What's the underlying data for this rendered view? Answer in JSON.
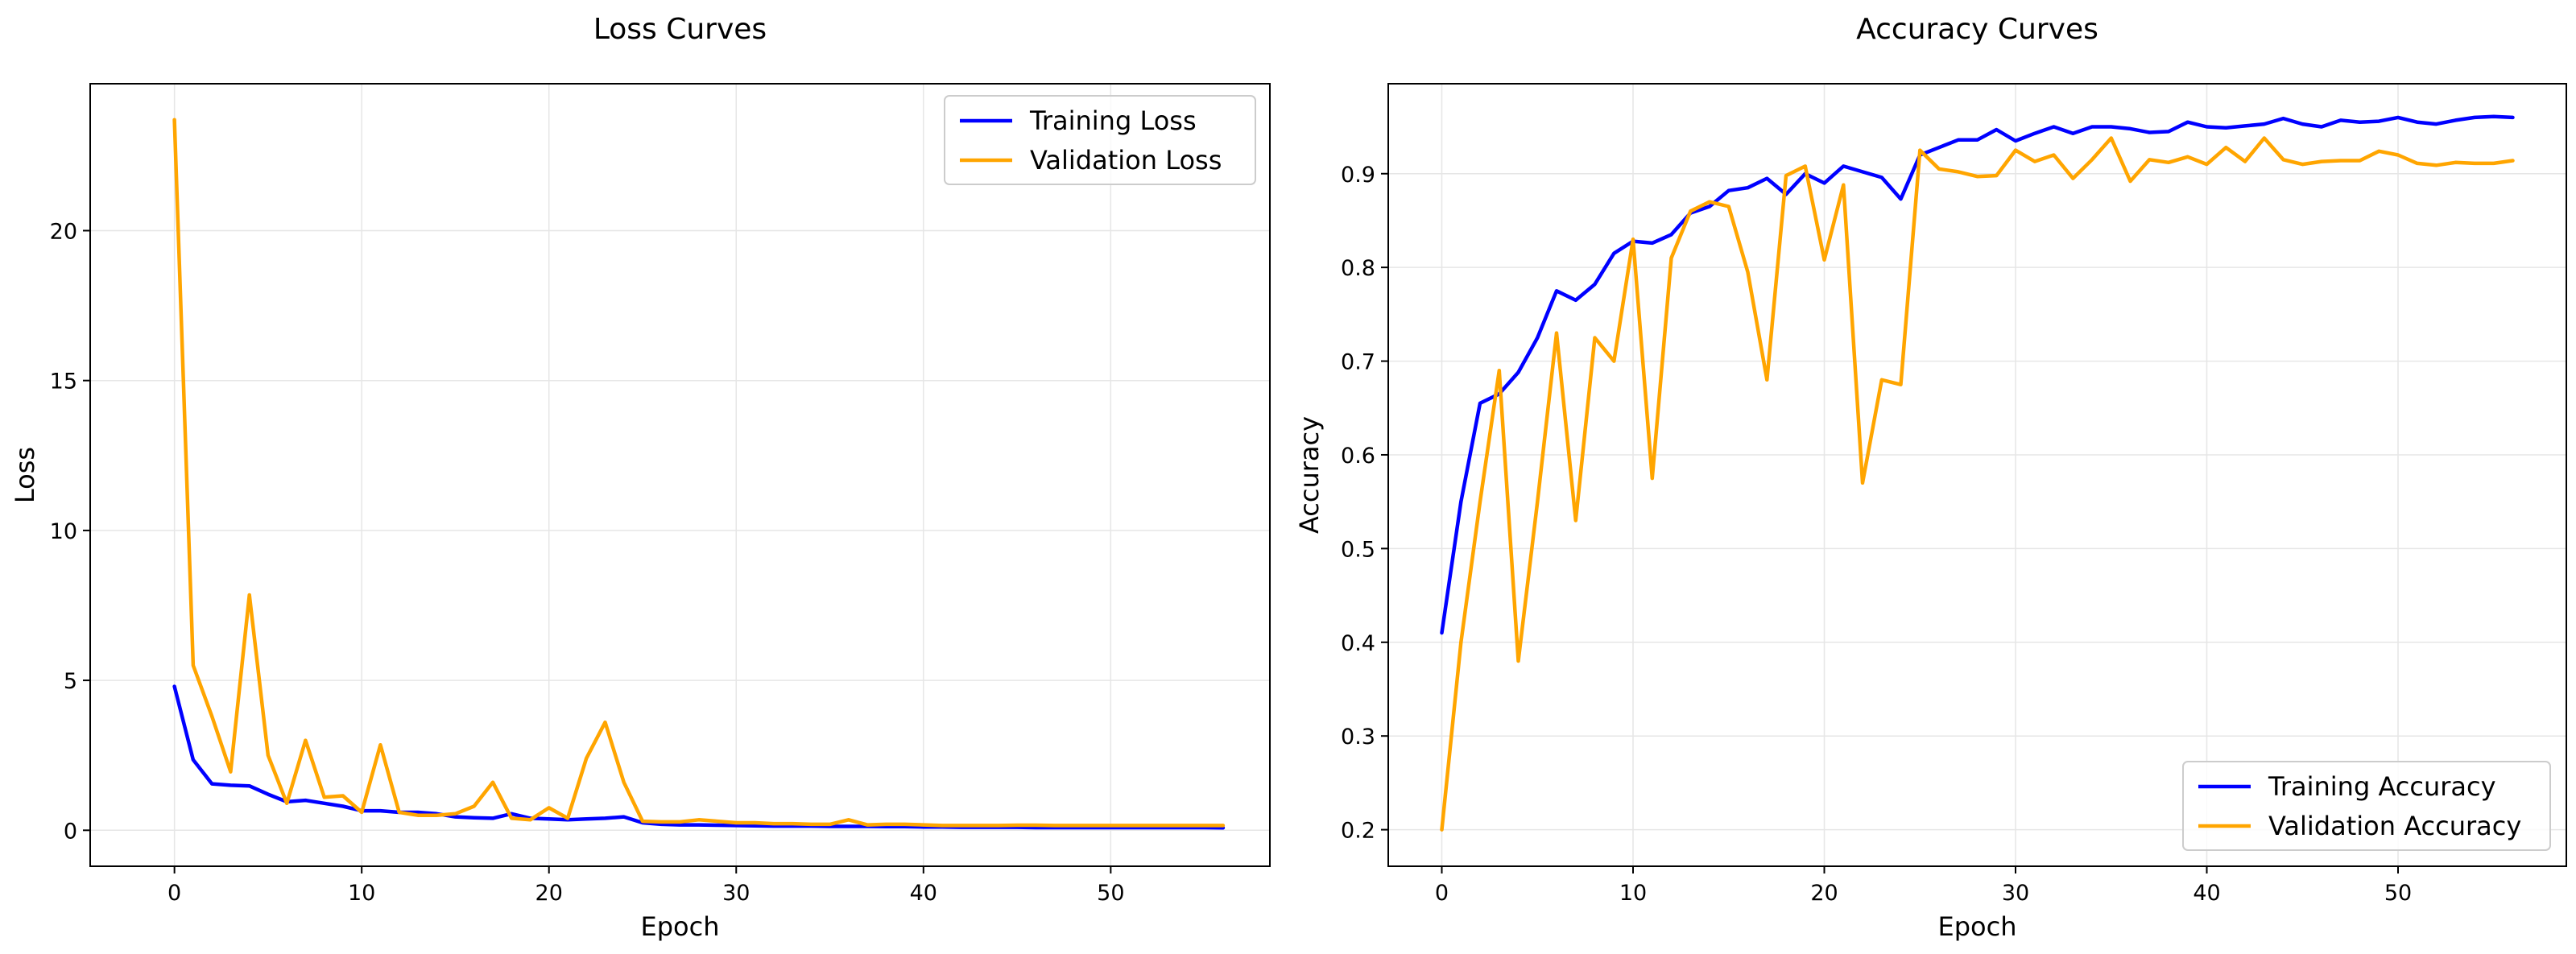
{
  "colors": {
    "training": "#0000ff",
    "validation": "#ffa500",
    "grid": "#e6e6e6",
    "axes": "#000000"
  },
  "chart_data": [
    {
      "type": "line",
      "title": "Loss Curves",
      "xlabel": "Epoch",
      "ylabel": "Loss",
      "xlim": [
        -4.5,
        58.5
      ],
      "ylim": [
        -1.2,
        24.9
      ],
      "xticks": [
        0,
        10,
        20,
        30,
        40,
        50
      ],
      "yticks": [
        0,
        5,
        10,
        15,
        20
      ],
      "grid": true,
      "legend_position": "top-right",
      "series": [
        {
          "name": "Training Loss",
          "color": "#0000ff",
          "key": "training",
          "values": [
            4.8,
            2.35,
            1.55,
            1.5,
            1.48,
            1.2,
            0.95,
            1.0,
            0.9,
            0.8,
            0.65,
            0.65,
            0.6,
            0.6,
            0.55,
            0.45,
            0.42,
            0.4,
            0.55,
            0.4,
            0.38,
            0.35,
            0.38,
            0.4,
            0.45,
            0.25,
            0.2,
            0.18,
            0.18,
            0.17,
            0.16,
            0.15,
            0.14,
            0.14,
            0.14,
            0.13,
            0.13,
            0.13,
            0.12,
            0.12,
            0.11,
            0.11,
            0.1,
            0.1,
            0.1,
            0.1,
            0.09,
            0.09,
            0.09,
            0.09,
            0.09,
            0.09,
            0.09,
            0.09,
            0.09,
            0.09,
            0.08
          ]
        },
        {
          "name": "Validation Loss",
          "color": "#ffa500",
          "key": "validation",
          "values": [
            23.7,
            5.5,
            3.8,
            1.95,
            7.85,
            2.5,
            0.9,
            3.0,
            1.1,
            1.15,
            0.6,
            2.85,
            0.6,
            0.5,
            0.5,
            0.55,
            0.8,
            1.6,
            0.4,
            0.35,
            0.75,
            0.4,
            2.4,
            3.6,
            1.6,
            0.3,
            0.28,
            0.28,
            0.35,
            0.3,
            0.25,
            0.25,
            0.22,
            0.22,
            0.2,
            0.2,
            0.35,
            0.18,
            0.2,
            0.2,
            0.18,
            0.16,
            0.16,
            0.16,
            0.16,
            0.17,
            0.17,
            0.16,
            0.16,
            0.16,
            0.16,
            0.16,
            0.16,
            0.16,
            0.16,
            0.16,
            0.16
          ]
        }
      ]
    },
    {
      "type": "line",
      "title": "Accuracy Curves",
      "xlabel": "Epoch",
      "ylabel": "Accuracy",
      "xlim": [
        -2.8,
        58.8
      ],
      "ylim": [
        0.161,
        0.996
      ],
      "xticks": [
        0,
        10,
        20,
        30,
        40,
        50
      ],
      "yticks": [
        0.2,
        0.3,
        0.4,
        0.5,
        0.6,
        0.7,
        0.8,
        0.9
      ],
      "grid": true,
      "legend_position": "bottom-right",
      "series": [
        {
          "name": "Training Accuracy",
          "color": "#0000ff",
          "key": "training",
          "values": [
            0.41,
            0.55,
            0.655,
            0.665,
            0.688,
            0.725,
            0.775,
            0.765,
            0.782,
            0.815,
            0.828,
            0.826,
            0.835,
            0.858,
            0.865,
            0.882,
            0.885,
            0.895,
            0.878,
            0.9,
            0.89,
            0.908,
            0.902,
            0.896,
            0.873,
            0.92,
            0.928,
            0.936,
            0.936,
            0.947,
            0.935,
            0.943,
            0.95,
            0.943,
            0.95,
            0.95,
            0.948,
            0.944,
            0.945,
            0.955,
            0.95,
            0.949,
            0.951,
            0.953,
            0.959,
            0.953,
            0.95,
            0.957,
            0.955,
            0.956,
            0.96,
            0.955,
            0.953,
            0.957,
            0.96,
            0.961,
            0.96
          ]
        },
        {
          "name": "Validation Accuracy",
          "color": "#ffa500",
          "key": "validation",
          "values": [
            0.2,
            0.4,
            0.55,
            0.69,
            0.38,
            0.55,
            0.73,
            0.53,
            0.725,
            0.7,
            0.83,
            0.575,
            0.81,
            0.86,
            0.87,
            0.865,
            0.795,
            0.68,
            0.898,
            0.908,
            0.808,
            0.888,
            0.57,
            0.68,
            0.675,
            0.925,
            0.905,
            0.902,
            0.897,
            0.898,
            0.925,
            0.913,
            0.92,
            0.895,
            0.915,
            0.938,
            0.892,
            0.915,
            0.912,
            0.918,
            0.91,
            0.928,
            0.913,
            0.938,
            0.915,
            0.91,
            0.913,
            0.914,
            0.914,
            0.924,
            0.92,
            0.911,
            0.909,
            0.912,
            0.911,
            0.911,
            0.914
          ]
        }
      ]
    }
  ]
}
